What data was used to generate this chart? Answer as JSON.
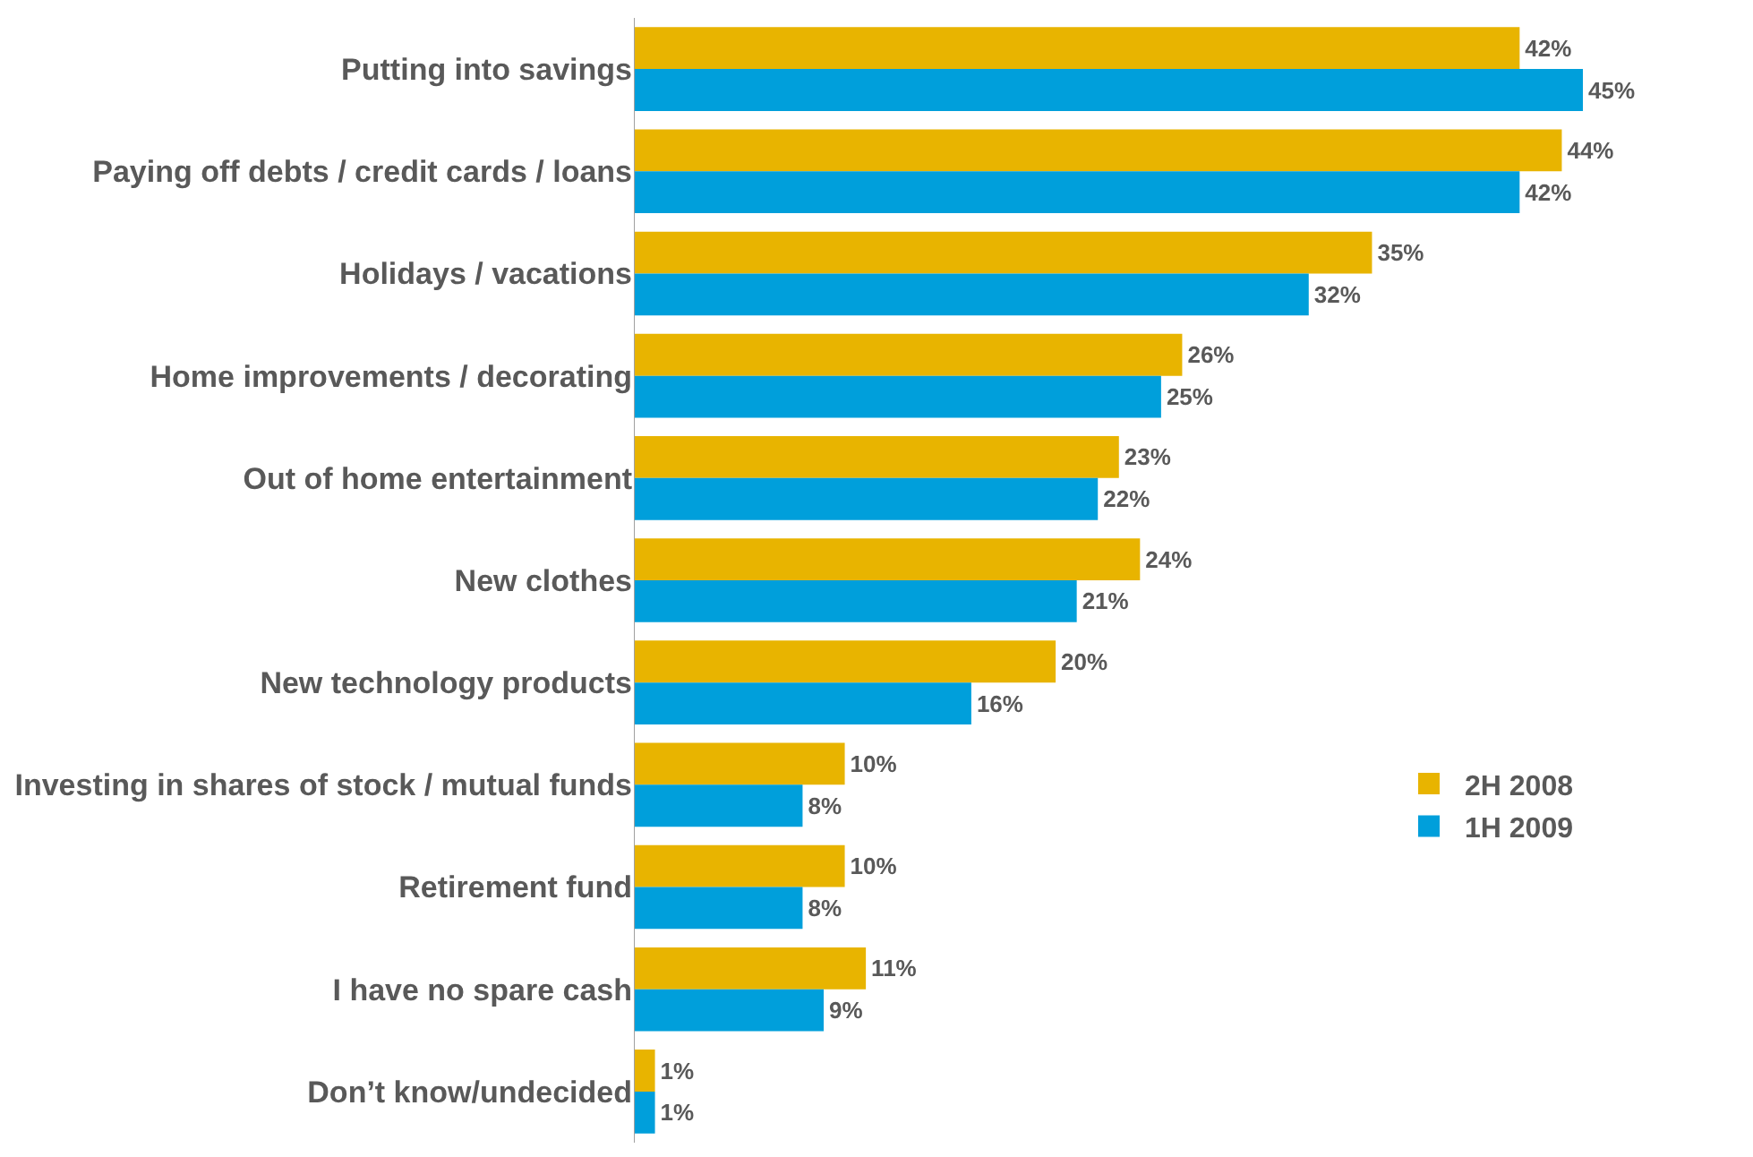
{
  "chart_data": {
    "type": "bar",
    "orientation": "horizontal",
    "legend": "right",
    "categories": [
      "Putting into savings",
      "Paying off debts / credit cards / loans",
      "Holidays / vacations",
      "Home improvements / decorating",
      "Out of home entertainment",
      "New clothes",
      "New technology products",
      "Investing in shares of stock / mutual funds",
      "Retirement fund",
      "I have no spare cash",
      "Don’t know/undecided"
    ],
    "series": [
      {
        "name": "2H 2008",
        "color": "#e8b400",
        "values": [
          42,
          44,
          35,
          26,
          23,
          24,
          20,
          10,
          10,
          11,
          1
        ],
        "value_labels": [
          "42%",
          "44%",
          "35%",
          "26%",
          "23%",
          "24%",
          "20%",
          "10%",
          "10%",
          "11%",
          "1%"
        ]
      },
      {
        "name": "1H 2009",
        "color": "#009fdb",
        "values": [
          45,
          42,
          32,
          25,
          22,
          21,
          16,
          8,
          8,
          9,
          1
        ],
        "value_labels": [
          "45%",
          "42%",
          "32%",
          "25%",
          "22%",
          "21%",
          "16%",
          "8%",
          "8%",
          "9%",
          "1%"
        ]
      }
    ]
  }
}
